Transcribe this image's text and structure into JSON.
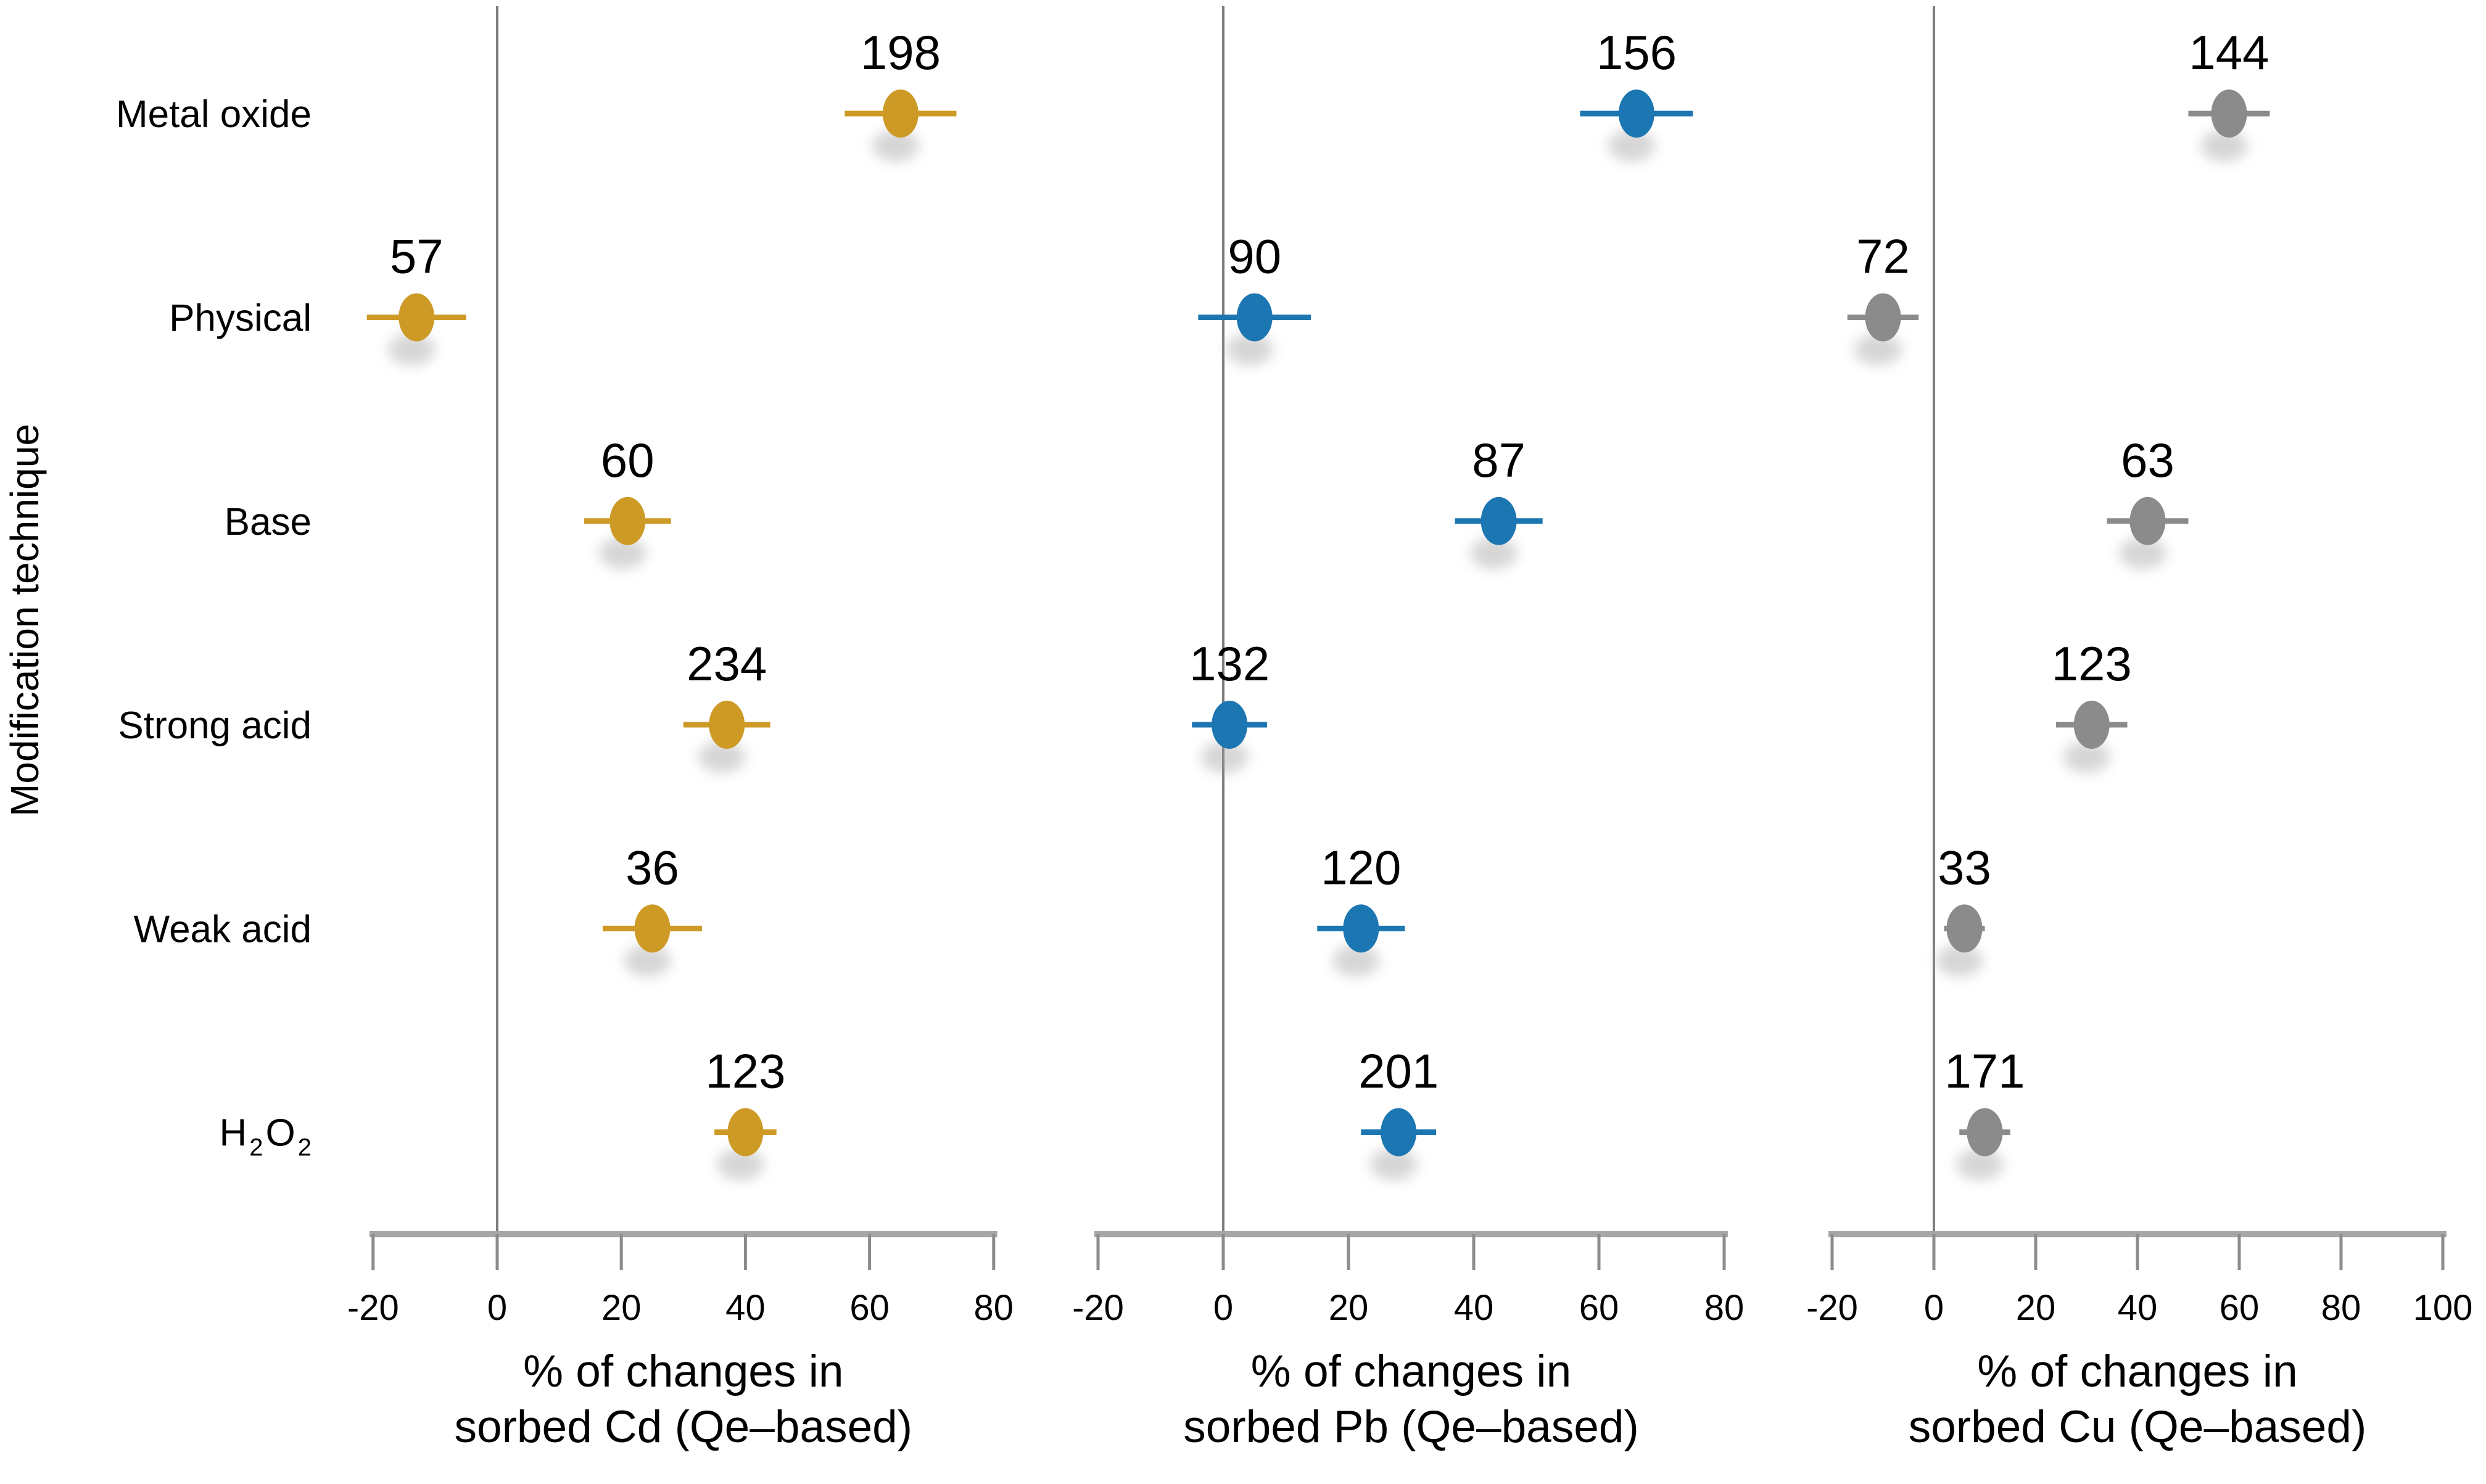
{
  "ylabel": "Modification technique",
  "categories": [
    "Metal oxide",
    "Physical",
    "Base",
    "Strong acid",
    "Weak acid",
    "H2O2"
  ],
  "chart_data": [
    {
      "type": "scatter",
      "metal": "Cd",
      "title_line1": "% of changes in",
      "title_line2": "sorbed Cd (Qe–based)",
      "color": "#CE9A26",
      "xlim": [
        -20,
        80
      ],
      "xticks": [
        -20,
        0,
        20,
        40,
        60,
        80
      ],
      "categories": [
        "Metal oxide",
        "Physical",
        "Base",
        "Strong acid",
        "Weak acid",
        "H2O2"
      ],
      "values": [
        65,
        -13,
        21,
        37,
        25,
        40
      ],
      "errors": [
        9,
        8,
        7,
        7,
        8,
        5
      ],
      "labels": [
        "198",
        "57",
        "60",
        "234",
        "36",
        "123"
      ]
    },
    {
      "type": "scatter",
      "metal": "Pb",
      "title_line1": "% of changes in",
      "title_line2": "sorbed Pb (Qe–based)",
      "color": "#1C76B2",
      "xlim": [
        -20,
        80
      ],
      "xticks": [
        -20,
        0,
        20,
        40,
        60,
        80
      ],
      "categories": [
        "Metal oxide",
        "Physical",
        "Base",
        "Strong acid",
        "Weak acid",
        "H2O2"
      ],
      "values": [
        66,
        5,
        44,
        1,
        22,
        28
      ],
      "errors": [
        9,
        9,
        7,
        6,
        7,
        6
      ],
      "labels": [
        "156",
        "90",
        "87",
        "132",
        "120",
        "201"
      ]
    },
    {
      "type": "scatter",
      "metal": "Cu",
      "title_line1": "% of changes in",
      "title_line2": "sorbed Cu (Qe–based)",
      "color": "#8B8B8B",
      "xlim": [
        -20,
        100
      ],
      "xticks": [
        -20,
        0,
        20,
        40,
        60,
        80,
        100
      ],
      "categories": [
        "Metal oxide",
        "Physical",
        "Base",
        "Strong acid",
        "Weak acid",
        "H2O2"
      ],
      "values": [
        58,
        -10,
        42,
        31,
        6,
        10
      ],
      "errors": [
        8,
        7,
        8,
        7,
        4,
        5
      ],
      "labels": [
        "144",
        "72",
        "63",
        "123",
        "33",
        "171"
      ]
    }
  ],
  "axis_color": "#A6A6A6",
  "gridline_color": "#7F7F7F"
}
